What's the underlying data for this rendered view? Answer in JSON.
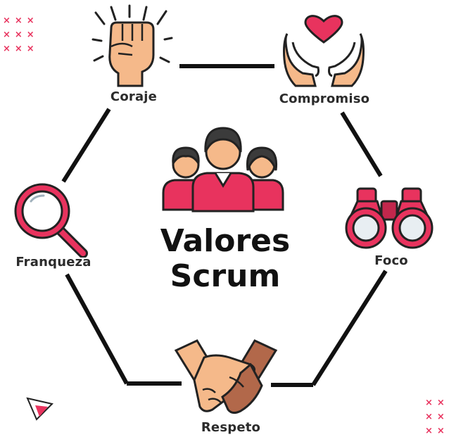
{
  "diagram": {
    "title_line1": "Valores",
    "title_line2": "Scrum",
    "values": [
      {
        "label": "Coraje",
        "icon": "raised-fist-icon"
      },
      {
        "label": "Compromiso",
        "icon": "hands-heart-icon"
      },
      {
        "label": "Foco",
        "icon": "binoculars-icon"
      },
      {
        "label": "Respeto",
        "icon": "handshake-icon"
      },
      {
        "label": "Franqueza",
        "icon": "magnifying-glass-icon"
      }
    ],
    "center_icon": "team-icon"
  },
  "colors": {
    "accent": "#e8335e",
    "line": "#111111",
    "skin": "#f5b98a",
    "text": "#2b2b2b"
  }
}
